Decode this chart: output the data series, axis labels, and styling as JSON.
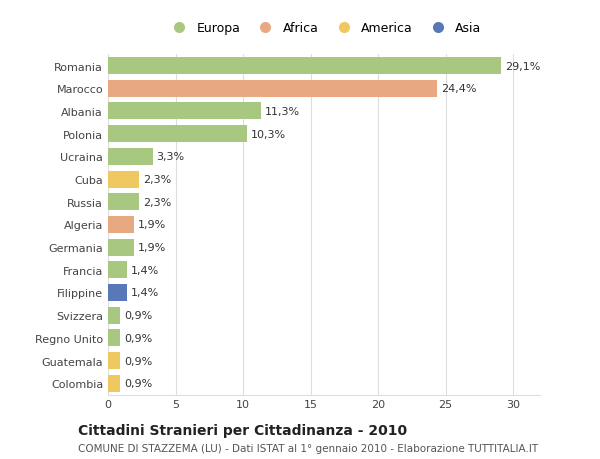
{
  "countries": [
    "Romania",
    "Marocco",
    "Albania",
    "Polonia",
    "Ucraina",
    "Cuba",
    "Russia",
    "Algeria",
    "Germania",
    "Francia",
    "Filippine",
    "Svizzera",
    "Regno Unito",
    "Guatemala",
    "Colombia"
  ],
  "values": [
    29.1,
    24.4,
    11.3,
    10.3,
    3.3,
    2.3,
    2.3,
    1.9,
    1.9,
    1.4,
    1.4,
    0.9,
    0.9,
    0.9,
    0.9
  ],
  "labels": [
    "29,1%",
    "24,4%",
    "11,3%",
    "10,3%",
    "3,3%",
    "2,3%",
    "2,3%",
    "1,9%",
    "1,9%",
    "1,4%",
    "1,4%",
    "0,9%",
    "0,9%",
    "0,9%",
    "0,9%"
  ],
  "continents": [
    "Europa",
    "Africa",
    "Europa",
    "Europa",
    "Europa",
    "America",
    "Europa",
    "Africa",
    "Europa",
    "Europa",
    "Asia",
    "Europa",
    "Europa",
    "America",
    "America"
  ],
  "continent_colors": {
    "Europa": "#a8c882",
    "Africa": "#e8a882",
    "America": "#f0c860",
    "Asia": "#5878b8"
  },
  "legend_labels": [
    "Europa",
    "Africa",
    "America",
    "Asia"
  ],
  "legend_colors": [
    "#a8c882",
    "#e8a882",
    "#f0c860",
    "#5878b8"
  ],
  "xlim": [
    0,
    32
  ],
  "xticks": [
    0,
    5,
    10,
    15,
    20,
    25,
    30
  ],
  "title_main": "Cittadini Stranieri per Cittadinanza - 2010",
  "title_sub": "COMUNE DI STAZZEMA (LU) - Dati ISTAT al 1° gennaio 2010 - Elaborazione TUTTITALIA.IT",
  "bg_color": "#ffffff",
  "grid_color": "#dddddd",
  "bar_height": 0.75,
  "label_fontsize": 8,
  "tick_fontsize": 8,
  "title_fontsize": 10,
  "subtitle_fontsize": 7.5
}
